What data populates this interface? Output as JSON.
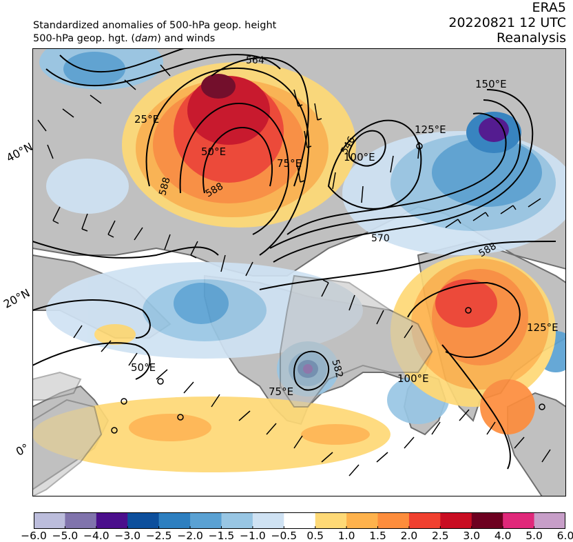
{
  "header": {
    "title_line1": "Standardized anomalies of 500-hPa geop. height",
    "title_line2_pre": "500-hPa geop. hgt. (",
    "title_line2_unit": "dam",
    "title_line2_post": ") and winds",
    "source": "ERA5",
    "datetime": "20220821 12 UTC",
    "product": "Reanalysis"
  },
  "map": {
    "lat_labels": [
      "40°N",
      "20°N",
      "0°"
    ],
    "lon_labels": [
      "25°E",
      "50°E",
      "75°E",
      "100°E",
      "125°E",
      "150°E",
      "50°E",
      "75°E",
      "100°E",
      "125°E"
    ],
    "contour_labels": [
      "564",
      "546",
      "570",
      "588",
      "588",
      "588",
      "582"
    ],
    "colors": {
      "land": "#c0c0c0",
      "coast": "#6e6e6e",
      "contour": "#000000",
      "wind_barb": "#000000"
    }
  },
  "colorbar": {
    "ticks": [
      "−6.0",
      "−5.0",
      "−4.0",
      "−3.0",
      "−2.5",
      "−2.0",
      "−1.5",
      "−1.0",
      "−0.5",
      "0.5",
      "1.0",
      "1.5",
      "2.0",
      "2.5",
      "3.0",
      "4.0",
      "5.0",
      "6.0"
    ],
    "colors": [
      "#bcbddc",
      "#8073ac",
      "#4b0f8c",
      "#0d4f9c",
      "#2d7fc0",
      "#5aa1d3",
      "#98c6e4",
      "#cfe2f3",
      "#ffffff",
      "#fed976",
      "#feb24c",
      "#fd8d3c",
      "#f0402f",
      "#c90d22",
      "#6d0020",
      "#e0287a",
      "#c79ec8"
    ]
  }
}
